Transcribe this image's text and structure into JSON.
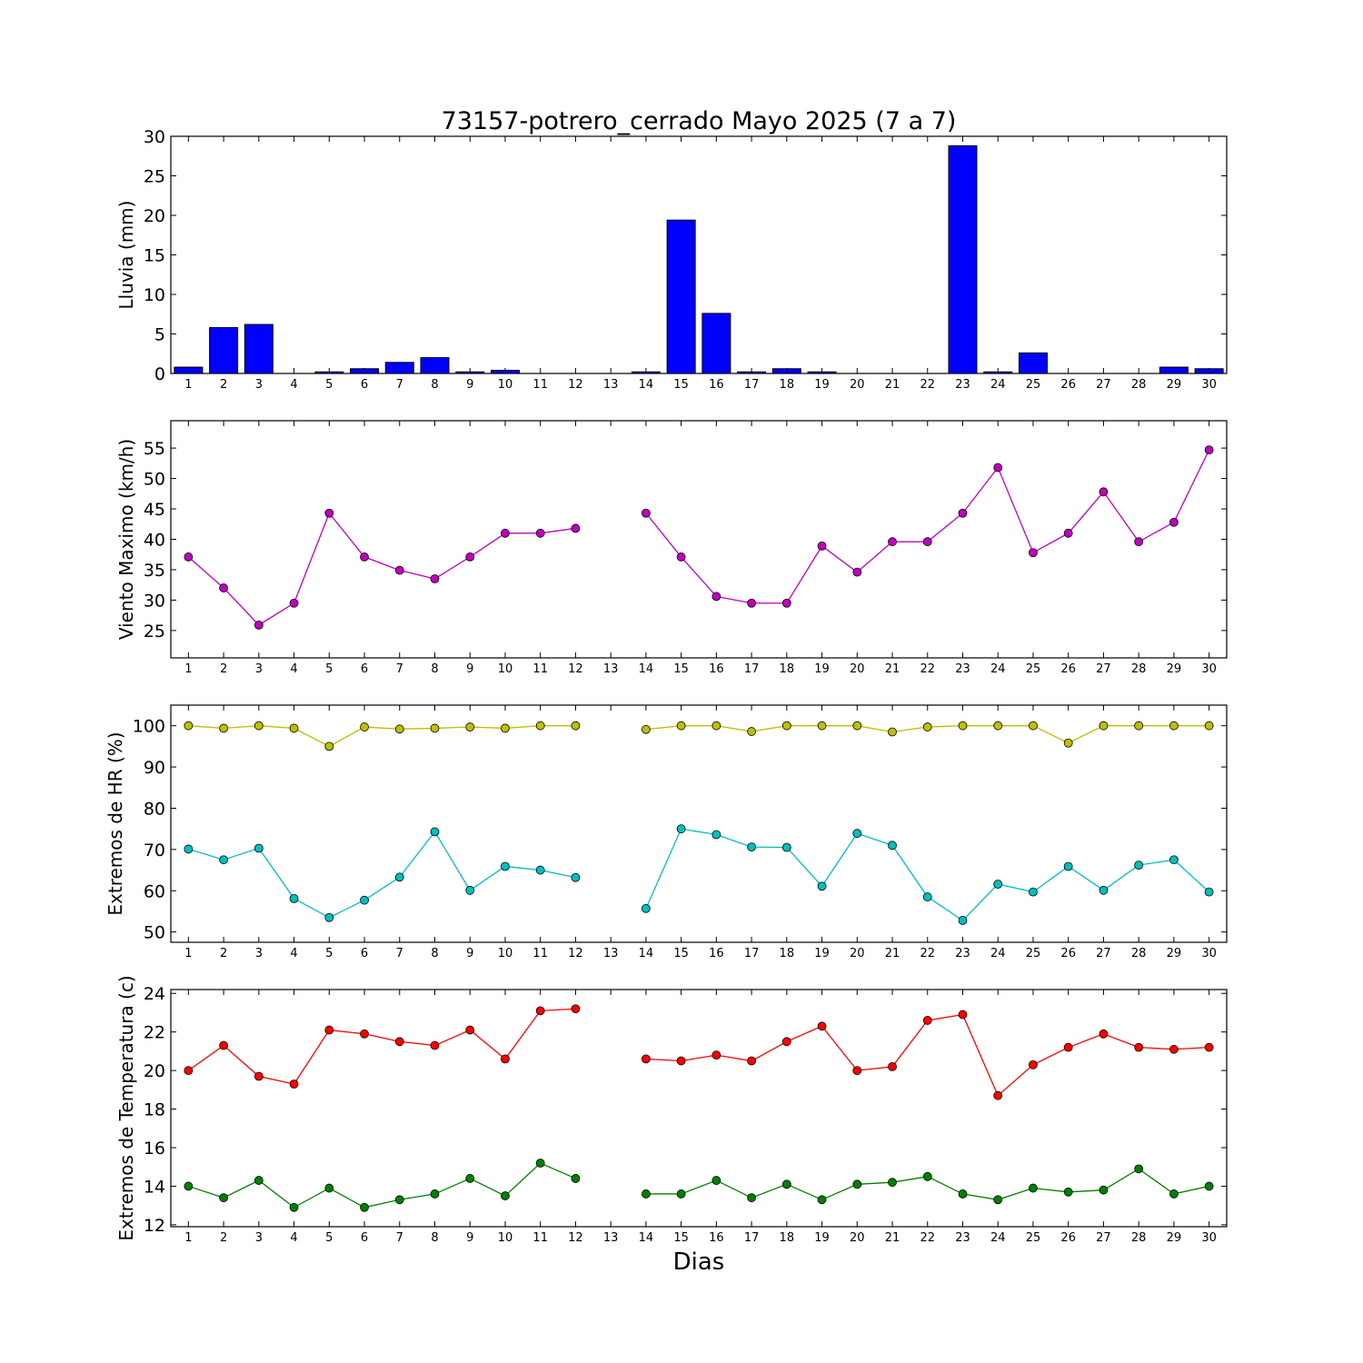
{
  "title": "73157-potrero_cerrado Mayo 2025  (7 a 7)",
  "xlabel": "Dias",
  "chart_data": [
    {
      "type": "bar",
      "ylabel": "Lluvia (mm)",
      "ylim": [
        0,
        30
      ],
      "yticks": [
        0,
        5,
        10,
        15,
        20,
        25,
        30
      ],
      "categories": [
        "1",
        "2",
        "3",
        "4",
        "5",
        "6",
        "7",
        "8",
        "9",
        "10",
        "11",
        "12",
        "13",
        "14",
        "15",
        "16",
        "17",
        "18",
        "19",
        "20",
        "21",
        "22",
        "23",
        "24",
        "25",
        "26",
        "27",
        "28",
        "29",
        "30"
      ],
      "series": [
        {
          "color": "#0000ff",
          "values": [
            0.8,
            5.8,
            6.2,
            0,
            0.2,
            0.6,
            1.4,
            2.0,
            0.2,
            0.4,
            0,
            0,
            0,
            0.2,
            19.4,
            7.6,
            0.2,
            0.6,
            0.2,
            0,
            0,
            0,
            28.8,
            0.2,
            2.6,
            0,
            0,
            0,
            0.8,
            0.6
          ]
        }
      ]
    },
    {
      "type": "line",
      "ylabel": "Viento Maximo (km/h)",
      "ylim": [
        20.5,
        59.5
      ],
      "yticks": [
        25,
        30,
        35,
        40,
        45,
        50,
        55
      ],
      "categories": [
        "1",
        "2",
        "3",
        "4",
        "5",
        "6",
        "7",
        "8",
        "9",
        "10",
        "11",
        "12",
        "13",
        "14",
        "15",
        "16",
        "17",
        "18",
        "19",
        "20",
        "21",
        "22",
        "23",
        "24",
        "25",
        "26",
        "27",
        "28",
        "29",
        "30"
      ],
      "series": [
        {
          "color": "#bf00bf",
          "values": [
            37.1,
            32.0,
            25.9,
            29.5,
            44.3,
            37.1,
            34.9,
            33.5,
            37.1,
            41.0,
            41.0,
            41.8,
            null,
            44.3,
            37.1,
            30.6,
            29.5,
            29.5,
            38.9,
            34.6,
            39.6,
            39.6,
            44.3,
            51.8,
            37.8,
            41.0,
            47.8,
            39.6,
            42.8,
            54.7
          ]
        }
      ]
    },
    {
      "type": "line",
      "ylabel": "Extremos de HR (%)",
      "ylim": [
        47.5,
        105
      ],
      "yticks": [
        50,
        60,
        70,
        80,
        90,
        100
      ],
      "categories": [
        "1",
        "2",
        "3",
        "4",
        "5",
        "6",
        "7",
        "8",
        "9",
        "10",
        "11",
        "12",
        "13",
        "14",
        "15",
        "16",
        "17",
        "18",
        "19",
        "20",
        "21",
        "22",
        "23",
        "24",
        "25",
        "26",
        "27",
        "28",
        "29",
        "30"
      ],
      "series": [
        {
          "color": "#bfbf00",
          "values": [
            100,
            99.4,
            100,
            99.4,
            95.0,
            99.7,
            99.2,
            99.4,
            99.7,
            99.4,
            100,
            100,
            null,
            99.1,
            100,
            100,
            98.6,
            100,
            100,
            100,
            98.5,
            99.7,
            100,
            100,
            100,
            95.8,
            100,
            100,
            100,
            100
          ]
        },
        {
          "color": "#00bfbf",
          "values": [
            70.1,
            67.5,
            70.3,
            58.1,
            53.5,
            57.7,
            63.3,
            74.3,
            60.1,
            65.9,
            65.0,
            63.2,
            null,
            55.7,
            75.0,
            73.6,
            70.6,
            70.5,
            61.1,
            73.9,
            71.0,
            58.5,
            52.8,
            61.6,
            59.7,
            65.9,
            60.1,
            66.2,
            67.5,
            59.7
          ]
        }
      ]
    },
    {
      "type": "line",
      "ylabel": "Extremos de Temperatura (c)",
      "ylim": [
        11.9,
        24.2
      ],
      "yticks": [
        12,
        14,
        16,
        18,
        20,
        22,
        24
      ],
      "categories": [
        "1",
        "2",
        "3",
        "4",
        "5",
        "6",
        "7",
        "8",
        "9",
        "10",
        "11",
        "12",
        "13",
        "14",
        "15",
        "16",
        "17",
        "18",
        "19",
        "20",
        "21",
        "22",
        "23",
        "24",
        "25",
        "26",
        "27",
        "28",
        "29",
        "30"
      ],
      "series": [
        {
          "color": "#ff0000",
          "values": [
            20.0,
            21.3,
            19.7,
            19.3,
            22.1,
            21.9,
            21.5,
            21.3,
            22.1,
            20.6,
            23.1,
            23.2,
            null,
            20.6,
            20.5,
            20.8,
            20.5,
            21.5,
            22.3,
            20.0,
            20.2,
            22.6,
            22.9,
            18.7,
            20.3,
            21.2,
            21.9,
            21.2,
            21.1,
            21.2
          ]
        },
        {
          "color": "#008000",
          "values": [
            14.0,
            13.4,
            14.3,
            12.9,
            13.9,
            12.9,
            13.3,
            13.6,
            14.4,
            13.5,
            15.2,
            14.4,
            null,
            13.6,
            13.6,
            14.3,
            13.4,
            14.1,
            13.3,
            14.1,
            14.2,
            14.5,
            13.6,
            13.3,
            13.9,
            13.7,
            13.8,
            14.9,
            13.6,
            14.0
          ]
        }
      ]
    }
  ]
}
